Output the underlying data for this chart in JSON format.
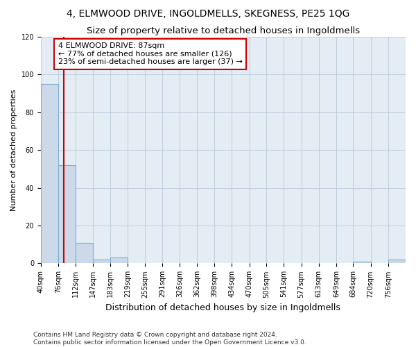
{
  "title": "4, ELMWOOD DRIVE, INGOLDMELLS, SKEGNESS, PE25 1QG",
  "subtitle": "Size of property relative to detached houses in Ingoldmells",
  "xlabel": "Distribution of detached houses by size in Ingoldmells",
  "ylabel": "Number of detached properties",
  "bar_values": [
    95,
    52,
    11,
    2,
    3,
    0,
    0,
    0,
    0,
    0,
    0,
    0,
    0,
    0,
    0,
    0,
    0,
    0,
    1,
    0,
    2
  ],
  "bin_edges": [
    40,
    76,
    112,
    147,
    183,
    219,
    255,
    291,
    326,
    362,
    398,
    434,
    470,
    505,
    541,
    577,
    613,
    649,
    684,
    720,
    756,
    792
  ],
  "bar_color": "#ccd9e8",
  "bar_edge_color": "#7aafd4",
  "property_size": 87,
  "property_line_color": "#cc0000",
  "annotation_text": "4 ELMWOOD DRIVE: 87sqm\n← 77% of detached houses are smaller (126)\n23% of semi-detached houses are larger (37) →",
  "annotation_box_color": "#cc0000",
  "annotation_text_color": "#000000",
  "ylim": [
    0,
    120
  ],
  "yticks": [
    0,
    20,
    40,
    60,
    80,
    100,
    120
  ],
  "grid_color": "#b8c8d8",
  "background_color": "#e4ecf4",
  "footer_line1": "Contains HM Land Registry data © Crown copyright and database right 2024.",
  "footer_line2": "Contains public sector information licensed under the Open Government Licence v3.0.",
  "title_fontsize": 10,
  "subtitle_fontsize": 9.5,
  "xlabel_fontsize": 9,
  "ylabel_fontsize": 8,
  "tick_fontsize": 7,
  "annotation_fontsize": 8,
  "footer_fontsize": 6.5
}
